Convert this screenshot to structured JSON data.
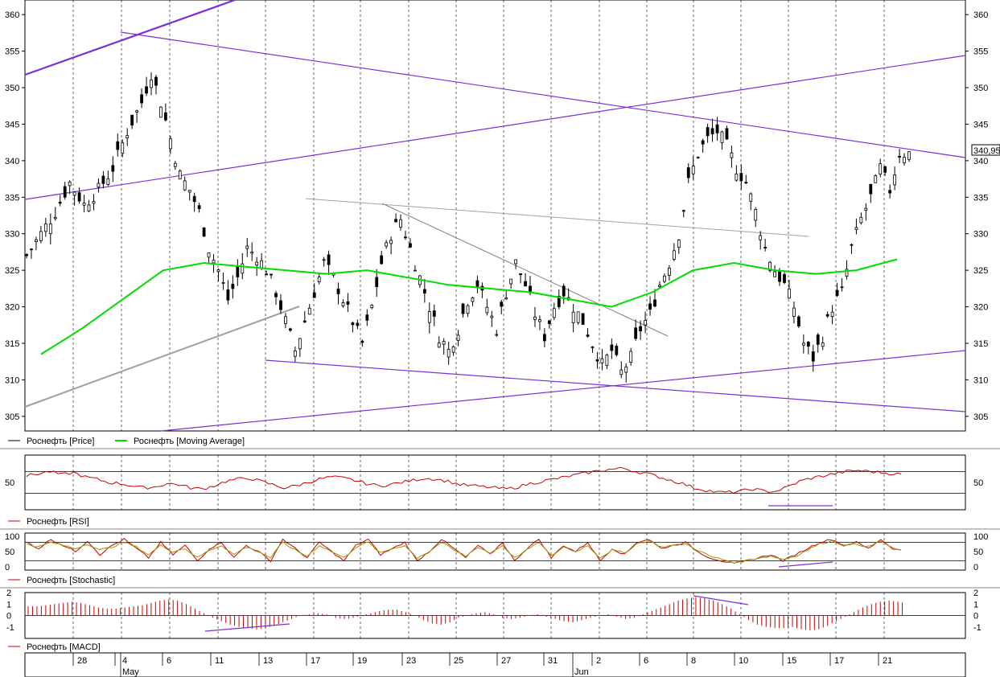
{
  "colors": {
    "price": "#000000",
    "moving_average": "#00dd00",
    "rsi": "#cc0000",
    "stoch_k": "#cc0000",
    "stoch_d": "#999900",
    "macd": "#cc0000",
    "trendline_purple": "#7b2fd6",
    "trendline_gray": "#a0a0a0",
    "grid": "#000000",
    "panel_border": "#000000"
  },
  "legend": {
    "price": "Роснефть [Price]",
    "moving_average": "Роснефть [Moving Average]",
    "rsi": "Роснефть [RSI]",
    "stochastic": "Роснефть [Stochastic]",
    "macd": "Роснефть [MACD]"
  },
  "last_price_label": "340,95",
  "chart_data": [
    {
      "type": "candlestick",
      "panel": "price",
      "ylim": [
        303,
        362
      ],
      "yticks": [
        305,
        310,
        315,
        320,
        325,
        330,
        335,
        340,
        345,
        350,
        355,
        360
      ],
      "x_tick_labels": [
        "28",
        "4",
        "6",
        "11",
        "13",
        "17",
        "19",
        "23",
        "25",
        "27",
        "31",
        "2",
        "6",
        "8",
        "10",
        "15",
        "17",
        "21"
      ],
      "month_labels": [
        "May",
        "Jun"
      ],
      "close_path": [
        [
          0,
          327
        ],
        [
          3,
          330
        ],
        [
          6,
          333
        ],
        [
          9,
          337
        ],
        [
          12,
          334
        ],
        [
          15,
          336
        ],
        [
          18,
          339
        ],
        [
          21,
          344
        ],
        [
          24,
          348
        ],
        [
          26,
          352
        ],
        [
          28,
          348
        ],
        [
          30,
          343
        ],
        [
          32,
          338
        ],
        [
          34,
          336
        ],
        [
          36,
          333
        ],
        [
          38,
          328
        ],
        [
          40,
          325
        ],
        [
          42,
          321
        ],
        [
          44,
          324
        ],
        [
          46,
          328
        ],
        [
          48,
          327
        ],
        [
          50,
          325
        ],
        [
          52,
          322
        ],
        [
          54,
          318
        ],
        [
          56,
          314
        ],
        [
          58,
          318
        ],
        [
          60,
          322
        ],
        [
          62,
          326
        ],
        [
          64,
          324
        ],
        [
          66,
          321
        ],
        [
          68,
          318
        ],
        [
          70,
          315
        ],
        [
          72,
          320
        ],
        [
          74,
          326
        ],
        [
          76,
          330
        ],
        [
          78,
          332
        ],
        [
          80,
          328
        ],
        [
          82,
          324
        ],
        [
          84,
          320
        ],
        [
          86,
          316
        ],
        [
          88,
          314
        ],
        [
          90,
          317
        ],
        [
          92,
          321
        ],
        [
          94,
          323
        ],
        [
          96,
          320
        ],
        [
          98,
          317
        ],
        [
          100,
          322
        ],
        [
          102,
          326
        ],
        [
          104,
          323
        ],
        [
          106,
          319
        ],
        [
          108,
          316
        ],
        [
          110,
          320
        ],
        [
          112,
          322
        ],
        [
          114,
          320
        ],
        [
          116,
          318
        ],
        [
          118,
          315
        ],
        [
          120,
          312
        ],
        [
          122,
          314
        ],
        [
          124,
          311
        ],
        [
          126,
          313
        ],
        [
          128,
          317
        ],
        [
          130,
          319
        ],
        [
          132,
          323
        ],
        [
          134,
          326
        ],
        [
          136,
          330
        ],
        [
          138,
          337
        ],
        [
          140,
          341
        ],
        [
          142,
          343
        ],
        [
          144,
          344
        ],
        [
          146,
          342
        ],
        [
          148,
          339
        ],
        [
          150,
          337
        ],
        [
          152,
          333
        ],
        [
          154,
          328
        ],
        [
          156,
          325
        ],
        [
          158,
          323
        ],
        [
          160,
          320
        ],
        [
          162,
          315
        ],
        [
          164,
          313
        ],
        [
          166,
          316
        ],
        [
          168,
          320
        ],
        [
          170,
          322
        ],
        [
          172,
          328
        ],
        [
          174,
          332
        ],
        [
          176,
          335
        ],
        [
          178,
          339
        ],
        [
          180,
          336
        ],
        [
          182,
          341
        ]
      ],
      "moving_average_path": [
        [
          0,
          313.5
        ],
        [
          6,
          317
        ],
        [
          12,
          321
        ],
        [
          18,
          325
        ],
        [
          24,
          326
        ],
        [
          30,
          325.5
        ],
        [
          36,
          325
        ],
        [
          42,
          324.5
        ],
        [
          48,
          325
        ],
        [
          54,
          324
        ],
        [
          60,
          323
        ],
        [
          66,
          322.5
        ],
        [
          72,
          322
        ],
        [
          78,
          321
        ],
        [
          84,
          320
        ],
        [
          90,
          322
        ],
        [
          96,
          325
        ],
        [
          102,
          326
        ],
        [
          108,
          325
        ],
        [
          114,
          324.5
        ],
        [
          120,
          325
        ],
        [
          126,
          326.5
        ]
      ]
    },
    {
      "type": "line",
      "panel": "rsi",
      "ylim": [
        0,
        100
      ],
      "yticks": [
        50
      ],
      "levels": [
        70,
        30
      ],
      "series": [
        {
          "values": [
            62,
            66,
            70,
            64,
            68,
            60,
            56,
            50,
            48,
            44,
            40,
            42,
            48,
            46,
            40,
            38,
            44,
            52,
            56,
            58,
            52,
            46,
            40,
            44,
            50,
            56,
            60,
            58,
            54,
            48,
            44,
            46,
            50,
            54,
            58,
            56,
            52,
            46,
            44,
            42,
            40,
            38,
            42,
            48,
            52,
            56,
            60,
            64,
            68,
            72,
            74,
            76,
            70,
            66,
            60,
            54,
            48,
            40,
            36,
            32,
            32,
            34,
            38,
            34,
            34,
            42,
            52,
            58,
            62,
            66,
            70,
            72,
            70,
            68,
            66,
            64
          ]
        }
      ]
    },
    {
      "type": "line",
      "panel": "stochastic",
      "ylim": [
        -10,
        110
      ],
      "yticks": [
        0,
        50,
        100
      ],
      "levels": [
        80,
        20
      ],
      "series": [
        {
          "values": [
            80,
            60,
            90,
            70,
            50,
            85,
            40,
            70,
            90,
            60,
            30,
            80,
            40,
            70,
            20,
            60,
            80,
            30,
            70,
            50,
            20,
            90,
            60,
            30,
            80,
            50,
            20,
            70,
            90,
            40,
            60,
            80,
            20,
            50,
            90,
            60,
            30,
            70,
            40,
            80,
            20,
            60,
            90,
            30,
            70,
            50,
            80,
            20,
            60,
            40,
            80,
            90,
            60,
            70,
            80,
            50,
            30,
            20,
            10,
            20,
            30,
            40,
            20,
            40,
            60,
            80,
            90,
            70,
            80,
            60,
            90,
            60,
            50
          ]
        },
        {
          "values": [
            75,
            65,
            80,
            70,
            60,
            75,
            55,
            65,
            80,
            65,
            40,
            70,
            50,
            60,
            30,
            55,
            70,
            40,
            65,
            50,
            30,
            80,
            55,
            35,
            70,
            50,
            30,
            65,
            80,
            45,
            60,
            70,
            30,
            50,
            80,
            55,
            35,
            65,
            45,
            70,
            30,
            55,
            80,
            35,
            65,
            50,
            70,
            30,
            55,
            45,
            75,
            85,
            65,
            70,
            75,
            55,
            35,
            25,
            15,
            20,
            30,
            35,
            25,
            35,
            55,
            75,
            85,
            70,
            75,
            65,
            85,
            60,
            50
          ]
        }
      ]
    },
    {
      "type": "bar",
      "panel": "macd",
      "ylim": [
        -2,
        2
      ],
      "yticks": [
        2,
        1,
        0,
        -1
      ],
      "zero_line": 0,
      "values": [
        0.8,
        0.8,
        0.9,
        1.0,
        1.1,
        1.2,
        1.1,
        0.9,
        0.7,
        0.6,
        0.6,
        0.7,
        0.8,
        0.9,
        1.1,
        1.3,
        1.4,
        1.3,
        1.0,
        0.6,
        0.2,
        -0.2,
        -0.5,
        -0.8,
        -1.0,
        -1.1,
        -1.2,
        -1.1,
        -0.9,
        -0.6,
        -0.3,
        0.0,
        0.1,
        0.2,
        0.1,
        -0.2,
        -0.3,
        -0.2,
        0.0,
        0.2,
        0.4,
        0.5,
        0.5,
        0.3,
        0.0,
        -0.4,
        -0.7,
        -0.8,
        -0.6,
        -0.2,
        0.0,
        0.2,
        0.3,
        0.1,
        -0.2,
        -0.3,
        -0.2,
        0.0,
        0.1,
        -0.1,
        -0.3,
        -0.5,
        -0.6,
        -0.4,
        -0.2,
        0.0,
        0.1,
        -0.1,
        -0.3,
        -0.2,
        0.1,
        0.4,
        0.7,
        1.0,
        1.3,
        1.5,
        1.6,
        1.5,
        1.3,
        1.0,
        0.6,
        0.1,
        -0.4,
        -0.8,
        -1.0,
        -1.1,
        -1.1,
        -1.0,
        -1.2,
        -1.3,
        -1.2,
        -0.9,
        -0.5,
        -0.1,
        0.3,
        0.7,
        1.0,
        1.2,
        1.3,
        1.2,
        1.1
      ]
    }
  ]
}
